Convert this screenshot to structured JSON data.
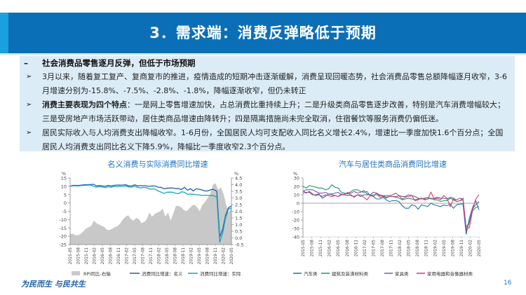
{
  "slide": {
    "title": "3．需求端：消费反弹略低于预期",
    "footer_logo": "为民而生 与民共生",
    "page_number": "16"
  },
  "summary": {
    "dash": "–",
    "heading": "社会消费品零售逐月反弹，但低于市场预期",
    "bullet_symbol": "➢",
    "p1": "3月以来，随着复工复产、复商复市的推进，疫情造成的短期冲击逐渐缓解，消费呈现回暖态势，社会消费品零售总额降幅逐月收窄，3-6月增速分别为-15.8%、-7.5%、-2.8%、-1.8%，降幅逐渐收窄，但仍未转正",
    "p2_bold": "消费主要表现为四个特点",
    "p2_rest": "：一是网上零售增速加快，占总消费比重持续上升；二是升级类商品零售逐步改善，特别是汽车消费增幅较大；三是受房地产市场活跃带动，居住类商品增速由降转升；四是隔离措施尚未完全取消，住宿餐饮等服务消费仍偏低迷。",
    "p3": "居民实际收入与人均消费支出降幅收窄。1-6月份，全国居民人均可支配收入同比名义增长2.4%，增速比一季度加快1.6个百分点；全国居民人均消费支出同比名义下降5.9%，降幅比一季度收窄2.3个百分点。"
  },
  "chart_data": [
    {
      "type": "line",
      "title": "名义消费与实际消费同比增速",
      "unit_left": "%",
      "unit_right": "%",
      "ylim": [
        -25,
        15
      ],
      "yticks": [
        -25,
        -20,
        -15,
        -10,
        -5,
        0,
        5,
        10,
        15
      ],
      "ylim_right": [
        -0.5,
        4.5
      ],
      "yticks_right": [
        "-0.5",
        "0.0",
        "0.5",
        "1.0",
        "1.5",
        "2.0",
        "2.5",
        "3.0",
        "3.5",
        "4.0",
        "4.5"
      ],
      "xtick_labels": [
        "2015-05",
        "2015-08",
        "2015-11",
        "2016-02",
        "2016-05",
        "2016-08",
        "2016-11",
        "2017-02",
        "2017-05",
        "2017-08",
        "2017-11",
        "2018-02",
        "2018-05",
        "2018-08",
        "2018-11",
        "2019-02",
        "2019-05",
        "2019-08",
        "2019-11",
        "2020-02",
        "2020-05"
      ],
      "legend_position": "bottom",
      "grid": false,
      "series": [
        {
          "name": "RPI同比-右轴",
          "kind": "area",
          "axis": "right",
          "color": "#c8c8c8",
          "values": [
            0.3,
            0.3,
            0.2,
            0.2,
            0.3,
            0.5,
            0.7,
            0.8,
            0.9,
            1.3,
            1.1,
            1.0,
            0.9,
            0.8,
            0.6,
            0.6,
            0.7,
            0.8,
            0.9,
            1.1,
            1.4,
            1.6,
            1.7,
            1.4,
            1.3,
            1.5,
            1.4,
            1.1,
            1.2,
            1.4,
            1.9,
            1.6,
            1.8,
            1.9,
            2.0,
            2.2,
            1.6,
            1.9,
            1.3,
            1.8,
            2.4,
            2.4,
            2.3,
            2.1,
            2.0,
            2.2,
            2.4,
            2.5,
            2.3,
            2.0,
            2.5,
            2.7,
            3.0,
            3.3,
            4.0,
            4.1,
            3.6,
            3.8,
            3.3,
            2.5,
            1.9,
            2.4
          ]
        },
        {
          "name": "消费同比增速：名义",
          "kind": "line",
          "axis": "left",
          "color": "#1f5fae",
          "values": [
            10.1,
            10.6,
            10.6,
            10.5,
            10.8,
            10.9,
            11.0,
            11.1,
            11.2,
            10.2,
            10.5,
            10.2,
            10.0,
            10.6,
            10.2,
            10.6,
            10.7,
            10.7,
            10.8,
            10.9,
            10.2,
            10.2,
            10.9,
            10.2,
            10.4,
            10.3,
            10.2,
            10.0,
            10.2,
            10.2,
            9.5,
            9.4,
            8.5,
            8.8,
            9.0,
            9.0,
            8.6,
            8.6,
            8.1,
            9.4,
            7.6,
            8.6,
            7.2,
            8.5,
            8.2,
            7.8,
            7.2,
            7.2,
            8.0,
            8.1,
            7.0,
            -20.5,
            -15.8,
            -7.5,
            -2.8,
            -1.8
          ]
        },
        {
          "name": "消费同比增速：实际",
          "kind": "line",
          "axis": "left",
          "color": "#19a8b8",
          "values": [
            10.0,
            10.3,
            10.3,
            10.2,
            10.5,
            10.6,
            10.7,
            10.7,
            10.0,
            9.5,
            9.8,
            9.6,
            9.1,
            9.8,
            9.4,
            9.9,
            9.7,
            9.9,
            10.0,
            10.2,
            9.6,
            9.5,
            10.1,
            9.4,
            9.0,
            9.3,
            9.2,
            8.4,
            8.3,
            8.3,
            7.2,
            6.5,
            5.7,
            6.4,
            6.5,
            6.4,
            5.8,
            5.6,
            6.7,
            6.4,
            5.1,
            5.4,
            5.2,
            4.9,
            4.9,
            4.5,
            4.7,
            4.5,
            4.4,
            4.4,
            3.4,
            -23.7,
            -18.1,
            -9.1,
            -3.7,
            -3.0
          ]
        }
      ]
    },
    {
      "type": "line",
      "title": "汽车与居住类商品消费同比增速",
      "unit_left": "%",
      "ylim": [
        -40,
        30
      ],
      "yticks": [
        -40,
        -30,
        -20,
        -10,
        0,
        10,
        20,
        30
      ],
      "xtick_labels": [
        "2015-05",
        "2015-08",
        "2015-11",
        "2016-02",
        "2016-05",
        "2016-08",
        "2016-11",
        "2017-02",
        "2017-05",
        "2017-08",
        "2017-11",
        "2018-02",
        "2018-05",
        "2018-08",
        "2018-11",
        "2019-02",
        "2019-05",
        "2019-08",
        "2019-11",
        "2020-02",
        "2020-05"
      ],
      "legend_position": "bottom",
      "grid": false,
      "series": [
        {
          "name": "汽车类",
          "color": "#1f6fb5",
          "values": [
            12,
            13,
            13,
            10,
            10,
            11,
            6,
            8,
            11,
            10,
            9,
            8,
            11,
            10,
            9,
            10,
            7,
            10,
            8,
            10,
            10,
            10,
            8,
            5,
            5,
            7,
            4,
            2,
            3,
            3,
            2,
            -3,
            -6,
            -6,
            -2,
            -3,
            -7,
            -2,
            -3,
            -4,
            0,
            -2,
            -3,
            -4,
            -2,
            -3,
            -1,
            -6,
            -2,
            -1,
            -1,
            -37,
            -18,
            -5,
            3,
            -8
          ]
        },
        {
          "name": "建筑及装潢材料类",
          "color": "#1a9a6a",
          "values": [
            20,
            18,
            21,
            20,
            19,
            18,
            18,
            16,
            17,
            22,
            19,
            18,
            13,
            12,
            11,
            14,
            16,
            16,
            14,
            13,
            14,
            9,
            10,
            10,
            9,
            9,
            7,
            8,
            8,
            8,
            6,
            4,
            5,
            6,
            5,
            4,
            5,
            6,
            5,
            5,
            6,
            4,
            4,
            2,
            3,
            3,
            6,
            4,
            2,
            3,
            4,
            -29,
            -22,
            -9,
            -5,
            -4
          ]
        },
        {
          "name": "家具类",
          "color": "#7a5aa8",
          "values": [
            14,
            16,
            16,
            16,
            14,
            12,
            12,
            13,
            11,
            11,
            12,
            13,
            10,
            11,
            12,
            12,
            14,
            12,
            13,
            15,
            11,
            10,
            13,
            12,
            10,
            9,
            9,
            9,
            10,
            12,
            9,
            8,
            8,
            10,
            9,
            8,
            6,
            5,
            6,
            7,
            5,
            6,
            7,
            6,
            6,
            5,
            7,
            6,
            4,
            6,
            5,
            -33,
            -23,
            -6,
            -2,
            2
          ]
        },
        {
          "name": "家用电器和音像器材类",
          "color": "#d83a6a",
          "values": [
            15,
            12,
            14,
            11,
            9,
            10,
            8,
            10,
            9,
            8,
            9,
            8,
            10,
            10,
            13,
            9,
            8,
            10,
            10,
            7,
            4,
            9,
            8,
            12,
            7,
            8,
            6,
            8,
            8,
            7,
            9,
            5,
            7,
            8,
            9,
            3,
            4,
            6,
            4,
            5,
            13,
            5,
            6,
            4,
            9,
            6,
            -4,
            5,
            2,
            3,
            6,
            -30,
            -29,
            -8,
            5,
            10
          ]
        }
      ]
    }
  ]
}
